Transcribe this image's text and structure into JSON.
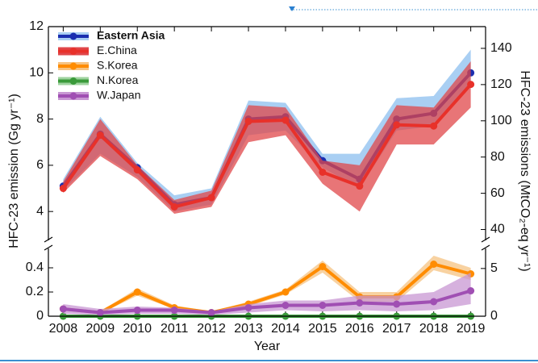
{
  "chart_data": [
    {
      "type": "line",
      "ylabel": "HFC-23 emission (Gg yr⁻¹)",
      "y2label": "HFC-23 emissions (MtCO₂-eq yr⁻¹)",
      "x": [
        2008,
        2009,
        2010,
        2011,
        2012,
        2013,
        2014,
        2015,
        2016,
        2017,
        2018,
        2019
      ],
      "xlim": [
        2007.6,
        2019.4
      ],
      "ylim": [
        2.75,
        12
      ],
      "yticks": [
        4,
        6,
        8,
        10,
        12
      ],
      "y2lim": [
        34,
        152
      ],
      "y2ticks": [
        40,
        60,
        80,
        100,
        120,
        140
      ],
      "series": [
        {
          "name": "Eastern Asia",
          "color": "#1b2fb0",
          "band_color": "#a9cff3",
          "values": [
            5.1,
            7.35,
            5.9,
            4.3,
            4.6,
            8.0,
            8.1,
            6.2,
            5.4,
            8.0,
            8.25,
            10.0
          ],
          "lower": [
            4.9,
            6.5,
            5.5,
            4.0,
            4.3,
            7.3,
            7.5,
            5.9,
            5.0,
            7.5,
            7.7,
            9.5
          ],
          "upper": [
            5.4,
            8.1,
            6.1,
            4.7,
            5.0,
            8.8,
            8.7,
            6.5,
            6.5,
            8.9,
            9.0,
            11.0
          ]
        },
        {
          "name": "E.China",
          "color": "#e8312a",
          "band_color": "#e0474a",
          "values": [
            5.0,
            7.3,
            5.8,
            4.2,
            4.6,
            7.9,
            7.95,
            5.7,
            5.1,
            7.75,
            7.7,
            9.5
          ],
          "lower": [
            4.8,
            6.4,
            5.4,
            3.9,
            4.2,
            7.0,
            7.3,
            5.2,
            4.0,
            6.9,
            6.9,
            8.5
          ],
          "upper": [
            5.3,
            8.0,
            6.0,
            4.5,
            4.9,
            8.6,
            8.5,
            6.2,
            6.0,
            8.6,
            8.5,
            10.5
          ]
        }
      ]
    },
    {
      "type": "line",
      "xlabel": "Year",
      "x": [
        2008,
        2009,
        2010,
        2011,
        2012,
        2013,
        2014,
        2015,
        2016,
        2017,
        2018,
        2019
      ],
      "xlim": [
        2007.6,
        2019.4
      ],
      "xticks": [
        2008,
        2009,
        2010,
        2011,
        2012,
        2013,
        2014,
        2015,
        2016,
        2017,
        2018,
        2019
      ],
      "ylim": [
        0,
        0.56
      ],
      "yticks": [
        0,
        0.2,
        0.4
      ],
      "y2lim": [
        0,
        7.1
      ],
      "y2ticks": [
        0,
        5
      ],
      "series": [
        {
          "name": "S.Korea",
          "color": "#ff8c00",
          "band_color": "#f6c382",
          "values": [
            0.06,
            0.03,
            0.2,
            0.07,
            0.03,
            0.1,
            0.2,
            0.41,
            0.16,
            0.16,
            0.43,
            0.35
          ],
          "lower": [
            0.05,
            0.02,
            0.17,
            0.06,
            0.02,
            0.08,
            0.18,
            0.36,
            0.12,
            0.12,
            0.38,
            0.3
          ],
          "upper": [
            0.07,
            0.04,
            0.23,
            0.09,
            0.04,
            0.12,
            0.22,
            0.46,
            0.2,
            0.2,
            0.5,
            0.4
          ]
        },
        {
          "name": "N.Korea",
          "color": "#3a9a3a",
          "band_color": "#9fd39f",
          "values": [
            0,
            0,
            0,
            0,
            0,
            0,
            0,
            0,
            0,
            0,
            0,
            0
          ],
          "lower": [
            0,
            0,
            0,
            0,
            0,
            0,
            0,
            0,
            0,
            0,
            0,
            0
          ],
          "upper": [
            0.005,
            0.005,
            0.005,
            0.005,
            0.005,
            0.005,
            0.005,
            0.005,
            0.005,
            0.005,
            0.005,
            0.005
          ]
        },
        {
          "name": "W.Japan",
          "color": "#a04fb3",
          "band_color": "#c897d3",
          "values": [
            0.06,
            0.03,
            0.05,
            0.05,
            0.03,
            0.07,
            0.09,
            0.09,
            0.11,
            0.1,
            0.12,
            0.21
          ],
          "lower": [
            0.02,
            0.01,
            0.02,
            0.02,
            0.01,
            0.03,
            0.05,
            0.04,
            0.05,
            0.04,
            0.05,
            0.1
          ],
          "upper": [
            0.1,
            0.06,
            0.08,
            0.07,
            0.04,
            0.1,
            0.13,
            0.13,
            0.17,
            0.17,
            0.2,
            0.36
          ]
        }
      ]
    }
  ]
}
